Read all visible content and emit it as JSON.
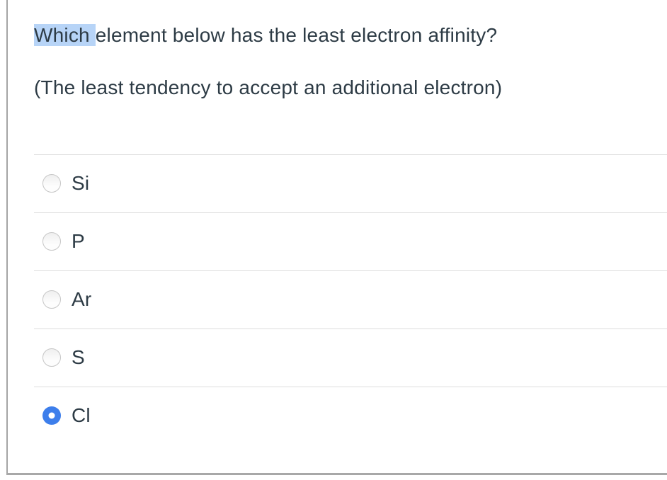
{
  "question": {
    "highlighted_text": "Which ",
    "text": "element below has the least electron affinity?",
    "subtext": "(The least tendency to accept an additional electron)",
    "highlight_color": "#b7d4f7",
    "text_color": "#2d3b45"
  },
  "options": [
    {
      "label": "Si",
      "selected": false
    },
    {
      "label": "P",
      "selected": false
    },
    {
      "label": "Ar",
      "selected": false
    },
    {
      "label": "S",
      "selected": false
    },
    {
      "label": "Cl",
      "selected": true
    }
  ],
  "colors": {
    "frame_border": "#a5a5a5",
    "divider": "#dddddd",
    "radio_selected_fill": "#3d7eeb"
  }
}
